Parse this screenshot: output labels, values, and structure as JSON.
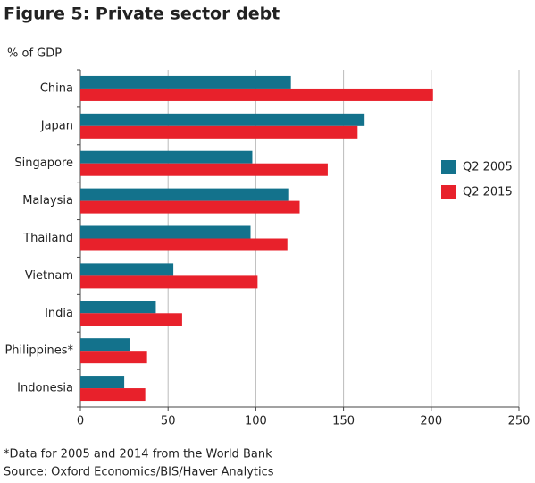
{
  "chart_data": {
    "type": "bar",
    "orientation": "horizontal",
    "title": "Figure 5: Private sector debt",
    "y_label": "% of GDP",
    "categories": [
      "China",
      "Japan",
      "Singapore",
      "Malaysia",
      "Thailand",
      "Vietnam",
      "India",
      "Philippines*",
      "Indonesia"
    ],
    "series": [
      {
        "name": "Q2 2005",
        "color": "#13728c",
        "values": [
          120,
          162,
          98,
          119,
          97,
          53,
          43,
          28,
          25
        ]
      },
      {
        "name": "Q2 2015",
        "color": "#e8212b",
        "values": [
          201,
          158,
          141,
          125,
          118,
          101,
          58,
          38,
          37
        ]
      }
    ],
    "xlim": [
      0,
      250
    ],
    "xticks": [
      0,
      50,
      100,
      150,
      200,
      250
    ],
    "grid": true,
    "legend": "right",
    "notes": [
      "*Data for 2005 and 2014 from the World Bank",
      "Source: Oxford Economics/BIS/Haver Analytics"
    ]
  }
}
